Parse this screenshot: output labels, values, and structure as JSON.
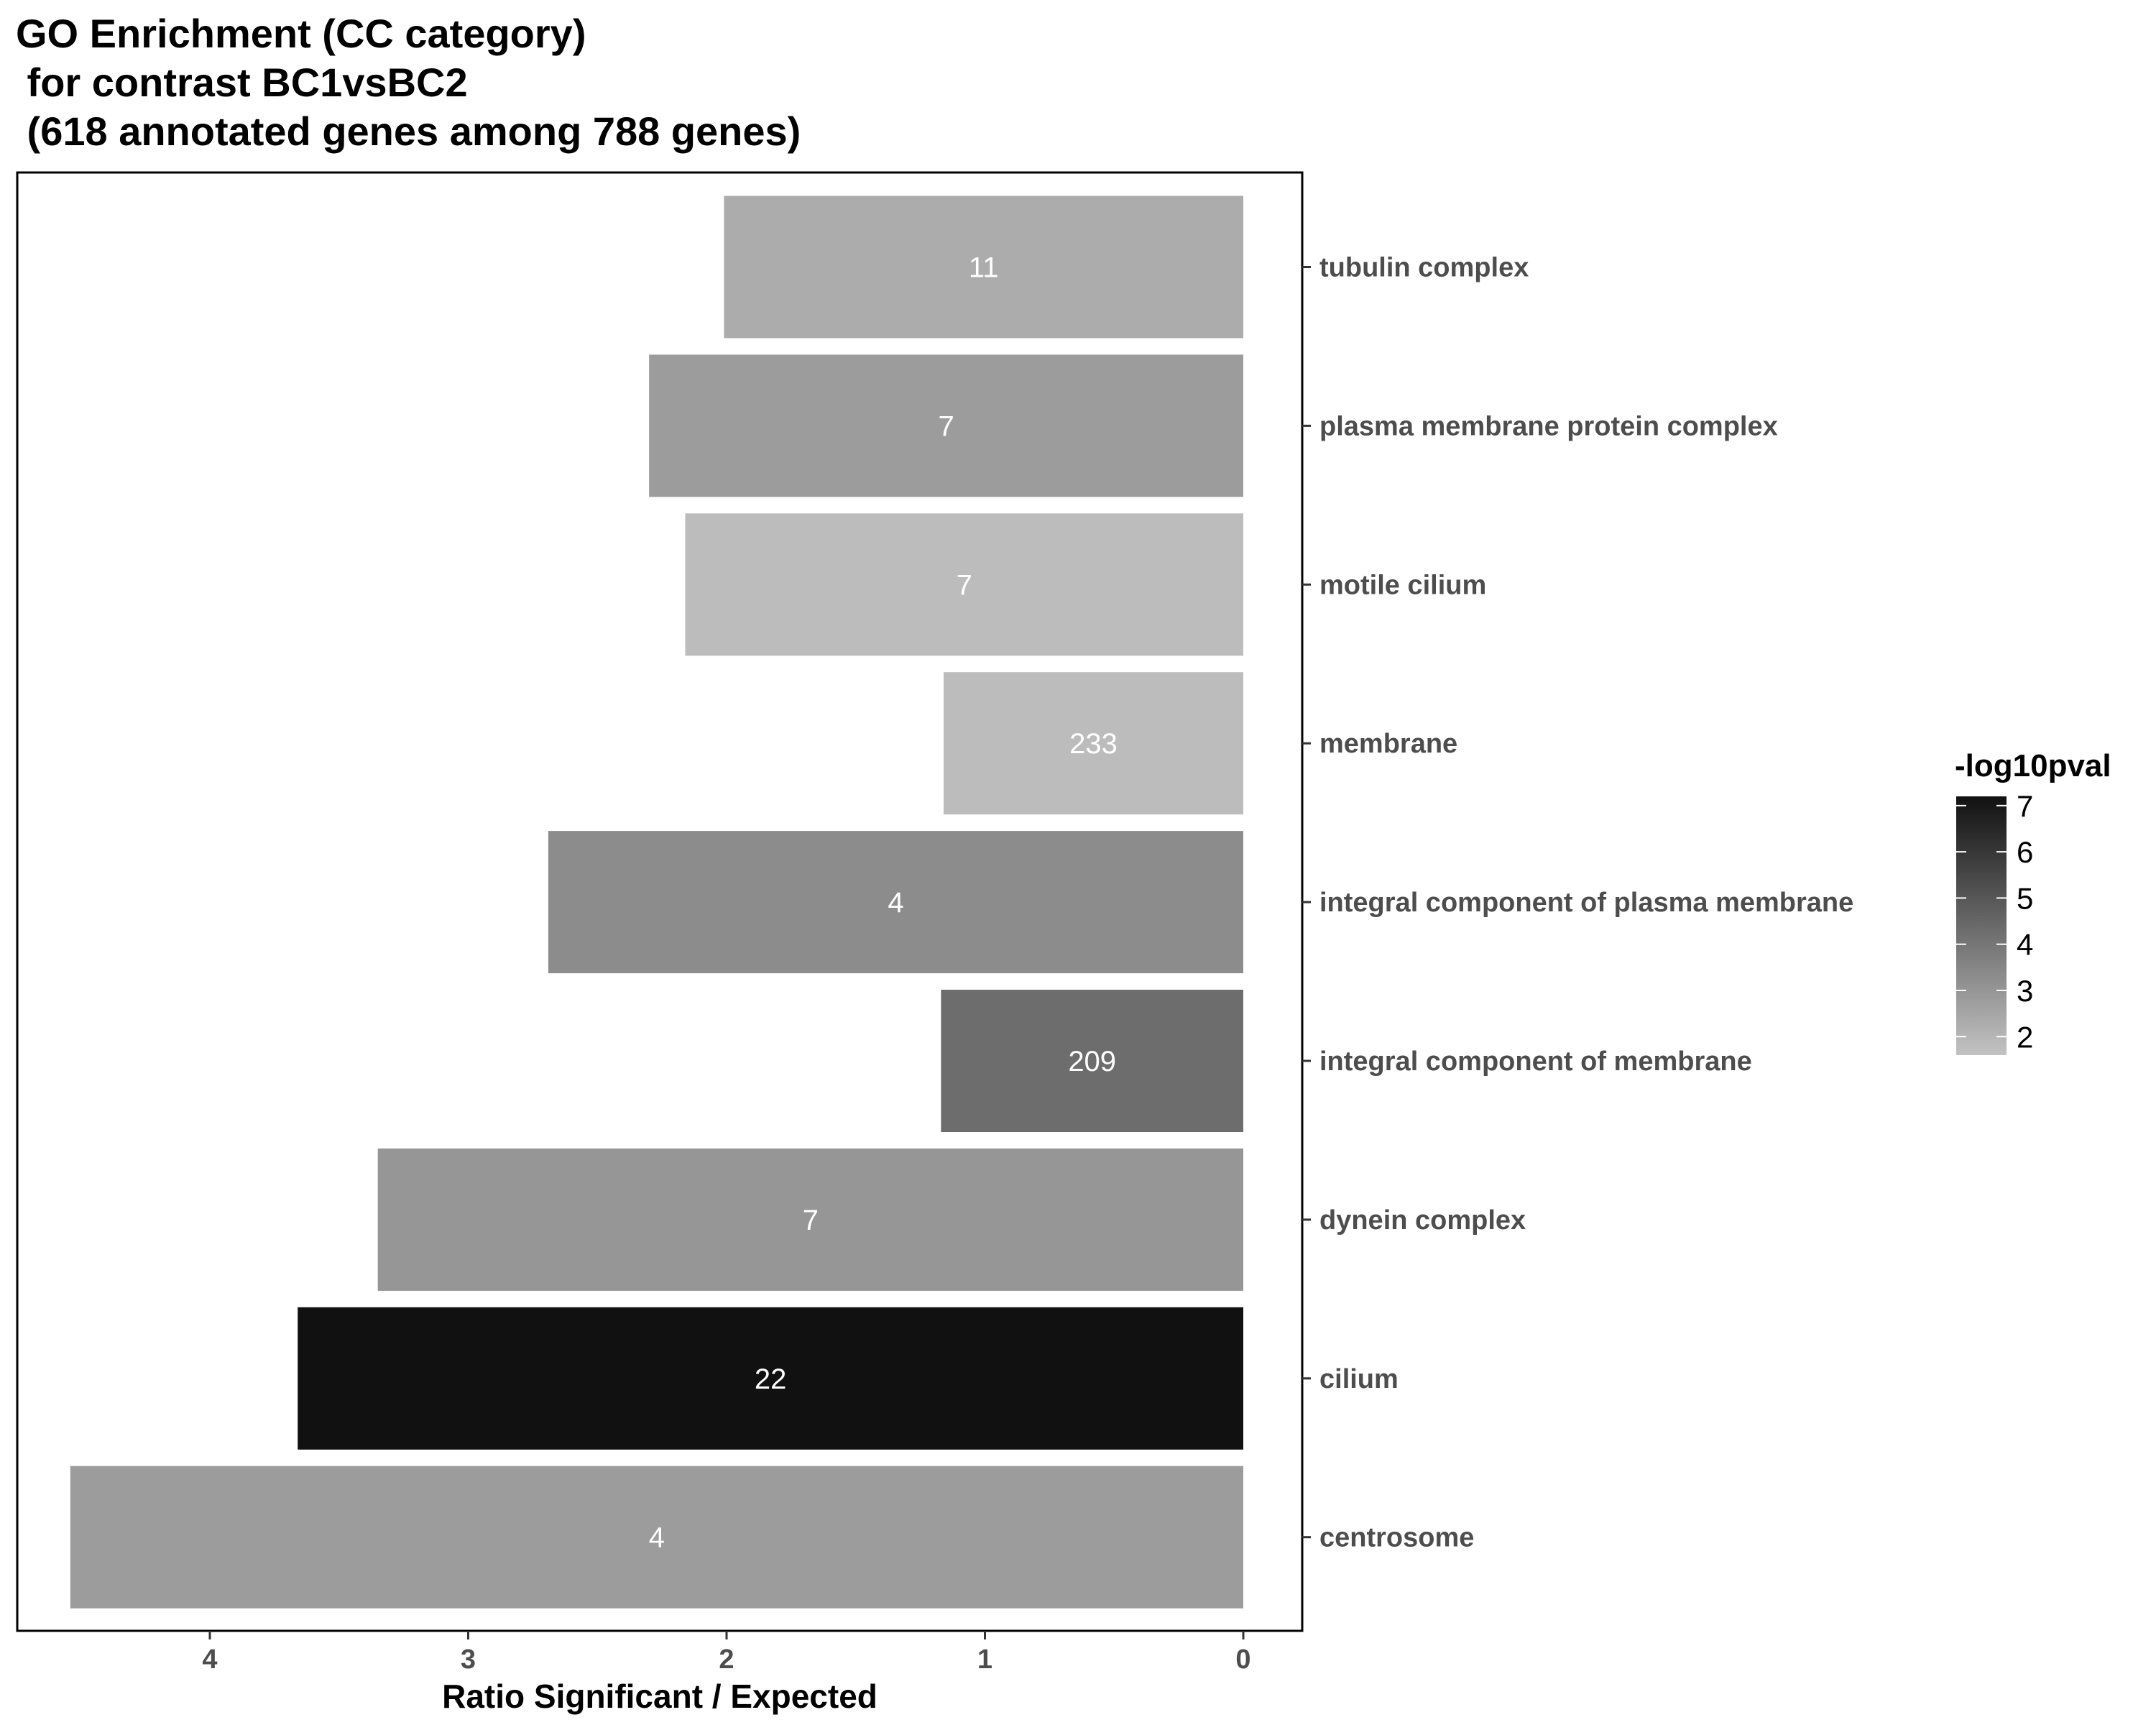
{
  "chart_data": {
    "type": "bar",
    "orientation": "horizontal",
    "x_reversed": true,
    "title_lines": [
      "GO Enrichment (CC category)",
      " for contrast BC1vsBC2",
      " (618 annotated genes among 788 genes)"
    ],
    "xlabel": "Ratio Significant / Expected",
    "ylabel": "",
    "xlim": [
      0,
      4.76
    ],
    "x_ticks": [
      4,
      3,
      2,
      1,
      0
    ],
    "categories": [
      "tubulin complex",
      "plasma membrane protein complex",
      "motile cilium",
      "membrane",
      "integral component of plasma membrane",
      "integral component of membrane",
      "dynein complex",
      "cilium",
      "centrosome"
    ],
    "values": [
      2.01,
      2.3,
      2.16,
      1.16,
      2.69,
      1.17,
      3.35,
      3.66,
      4.54
    ],
    "bar_labels": [
      "11",
      "7",
      "7",
      "233",
      "4",
      "209",
      "7",
      "22",
      "4"
    ],
    "neg_log10_pval": [
      2.3,
      2.8,
      1.8,
      1.8,
      3.3,
      4.3,
      3.0,
      7.2,
      2.8
    ],
    "legend": {
      "title": "-log10pval",
      "ticks": [
        7,
        6,
        5,
        4,
        3,
        2
      ],
      "range": [
        1.6,
        7.2
      ],
      "color_low": "#c2c2c2",
      "color_high": "#111111",
      "placement": "right"
    },
    "grid": false
  }
}
